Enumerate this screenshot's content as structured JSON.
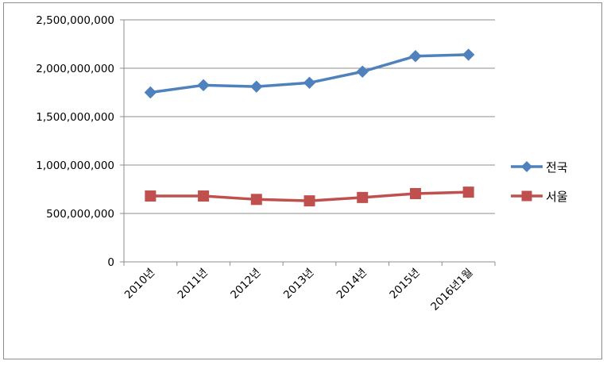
{
  "chart_data": {
    "type": "line",
    "title": "",
    "xlabel": "",
    "ylabel": "",
    "categories": [
      "2010년",
      "2011년",
      "2012년",
      "2013년",
      "2014년",
      "2015년",
      "2016년1월"
    ],
    "ylim": [
      0,
      2500000000
    ],
    "yticks": [
      0,
      500000000,
      1000000000,
      1500000000,
      2000000000,
      2500000000
    ],
    "ytick_labels": [
      "0",
      "500,000,000",
      "1,000,000,000",
      "1,500,000,000",
      "2,000,000,000",
      "2,500,000,000"
    ],
    "grid": true,
    "legend_position": "right",
    "series": [
      {
        "name": "전국",
        "color": "#4f81bd",
        "marker": "diamond",
        "values": [
          1750000000,
          1825000000,
          1810000000,
          1850000000,
          1965000000,
          2125000000,
          2140000000
        ]
      },
      {
        "name": "서울",
        "color": "#c0504d",
        "marker": "square",
        "values": [
          680000000,
          680000000,
          645000000,
          630000000,
          665000000,
          705000000,
          720000000
        ]
      }
    ]
  }
}
